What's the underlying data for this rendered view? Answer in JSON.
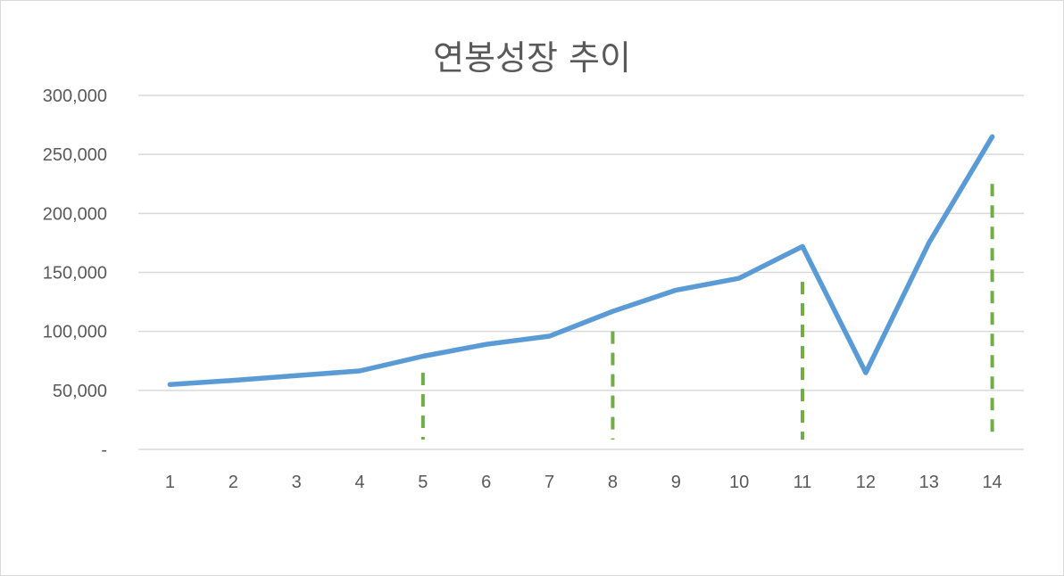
{
  "chart_data": {
    "type": "line",
    "title": "연봉성장 추이",
    "xlabel": "",
    "ylabel": "",
    "categories": [
      "1",
      "2",
      "3",
      "4",
      "5",
      "6",
      "7",
      "8",
      "9",
      "10",
      "11",
      "12",
      "13",
      "14"
    ],
    "series": [
      {
        "values": [
          55000,
          58500,
          62500,
          66500,
          79000,
          89000,
          96000,
          117000,
          135000,
          145000,
          172000,
          65000,
          175000,
          265000
        ]
      }
    ],
    "ylim": [
      0,
      300000
    ],
    "yticks": [
      0,
      50000,
      100000,
      150000,
      200000,
      250000,
      300000
    ],
    "ytick_labels": [
      "-",
      "50,000",
      "100,000",
      "150,000",
      "200,000",
      "250,000",
      "300,000"
    ],
    "grid": "horizontal",
    "legend": "none",
    "line_color": "#5B9BD5",
    "marker_lines": [
      {
        "x": "5",
        "ylim_top": 65000
      },
      {
        "x": "8",
        "ylim_top": 100000
      },
      {
        "x": "11",
        "ylim_top": 142000
      },
      {
        "x": "14",
        "ylim_top": 225000
      }
    ],
    "marker_line_color": "#70AD47"
  }
}
